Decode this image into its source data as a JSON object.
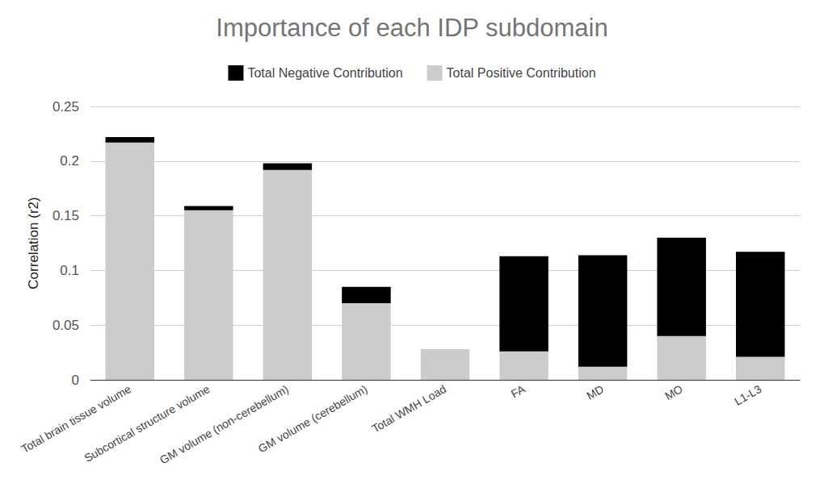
{
  "chart_data": {
    "type": "bar",
    "title": "Importance of each IDP subdomain",
    "y_label": "Correlation (r2)",
    "categories": [
      "Total brain tissue volume",
      "Subcortical structure volume",
      "GM volume (non-cerebellum)",
      "GM volume (cerebellum)",
      "Total WMH Load",
      "FA",
      "MD",
      "MO",
      "L1-L3"
    ],
    "series": [
      {
        "name": "Total Negative Contribution",
        "color": "#000000",
        "values": [
          0.005,
          0.004,
          0.006,
          0.015,
          0,
          0.087,
          0.102,
          0.09,
          0.096
        ]
      },
      {
        "name": "Total Positive Contribution",
        "color": "#cccccc",
        "values": [
          0.217,
          0.155,
          0.192,
          0.07,
          0.028,
          0.026,
          0.012,
          0.04,
          0.021
        ]
      }
    ],
    "ylim": [
      0,
      0.25
    ],
    "yticks": [
      0,
      0.05,
      0.1,
      0.15,
      0.2,
      0.25
    ],
    "stacked": true,
    "grid": true,
    "legend": "top",
    "data_labels": false
  }
}
